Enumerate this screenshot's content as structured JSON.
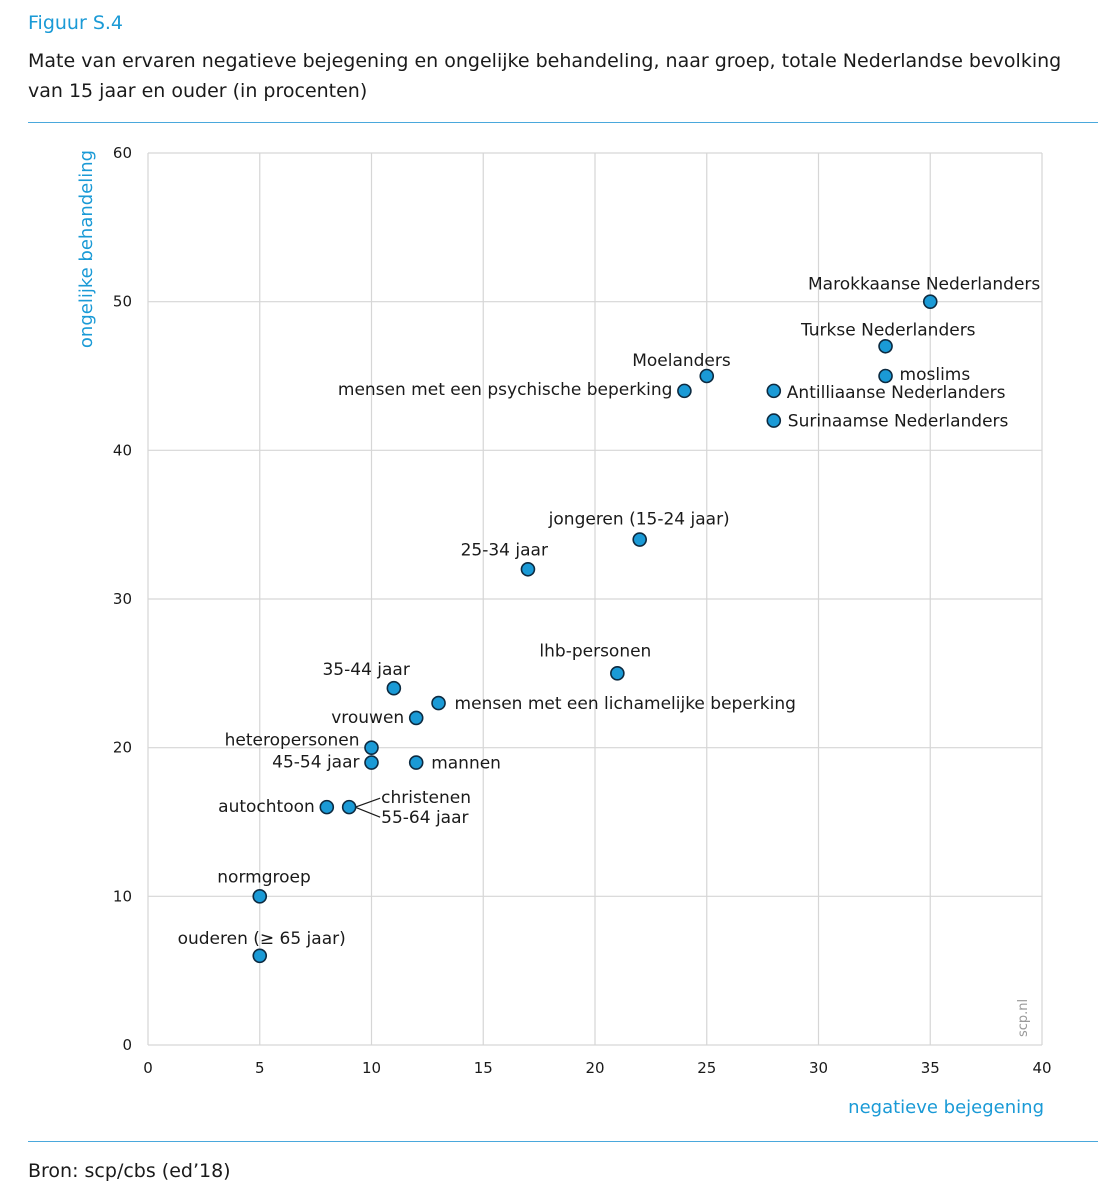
{
  "figure": {
    "label": "Figuur S.4",
    "title": "Mate van ervaren negatieve bejegening en ongelijke behandeling, naar groep, totale Nederlandse bevolking van 15 jaar en ouder (in procenten)",
    "source": "Bron: scp/cbs (ed’18)",
    "watermark": "scp.nl"
  },
  "colors": {
    "accent": "#1a9ad6",
    "marker_fill": "#1a9ad6",
    "marker_stroke": "#0d2a40",
    "grid": "#d6d6d6"
  },
  "chart_data": {
    "type": "scatter",
    "xlabel": "negatieve bejegening",
    "ylabel": "ongelijke behandeling",
    "xlim": [
      0,
      40
    ],
    "ylim": [
      0,
      60
    ],
    "xticks": [
      0,
      5,
      10,
      15,
      20,
      25,
      30,
      35,
      40
    ],
    "yticks": [
      0,
      10,
      20,
      30,
      40,
      50,
      60
    ],
    "grid": true,
    "points": [
      {
        "label": "Marokkaanse Nederlanders",
        "x": 35,
        "y": 50
      },
      {
        "label": "Turkse Nederlanders",
        "x": 33,
        "y": 47
      },
      {
        "label": "moslims",
        "x": 33,
        "y": 45
      },
      {
        "label": "Moelanders",
        "x": 25,
        "y": 45
      },
      {
        "label": "mensen met een psychische beperking",
        "x": 24,
        "y": 44
      },
      {
        "label": "Antilliaanse Nederlanders",
        "x": 28,
        "y": 44
      },
      {
        "label": "Surinaamse Nederlanders",
        "x": 28,
        "y": 42
      },
      {
        "label": "jongeren (15-24 jaar)",
        "x": 22,
        "y": 34
      },
      {
        "label": "25-34 jaar",
        "x": 17,
        "y": 32
      },
      {
        "label": "lhb-personen",
        "x": 21,
        "y": 25
      },
      {
        "label": "35-44 jaar",
        "x": 11,
        "y": 24
      },
      {
        "label": "mensen met een lichamelijke beperking",
        "x": 13,
        "y": 23
      },
      {
        "label": "vrouwen",
        "x": 12,
        "y": 22
      },
      {
        "label": "heteropersonen",
        "x": 10,
        "y": 20
      },
      {
        "label": "45-54 jaar",
        "x": 10,
        "y": 19
      },
      {
        "label": "mannen",
        "x": 12,
        "y": 19
      },
      {
        "label": "autochtoon",
        "x": 8,
        "y": 16
      },
      {
        "label": "christenen",
        "x": 9,
        "y": 16
      },
      {
        "label": "55-64 jaar",
        "x": 9,
        "y": 16
      },
      {
        "label": "normgroep",
        "x": 5,
        "y": 10
      },
      {
        "label": "ouderen (≥ 65 jaar)",
        "x": 5,
        "y": 6
      }
    ]
  }
}
